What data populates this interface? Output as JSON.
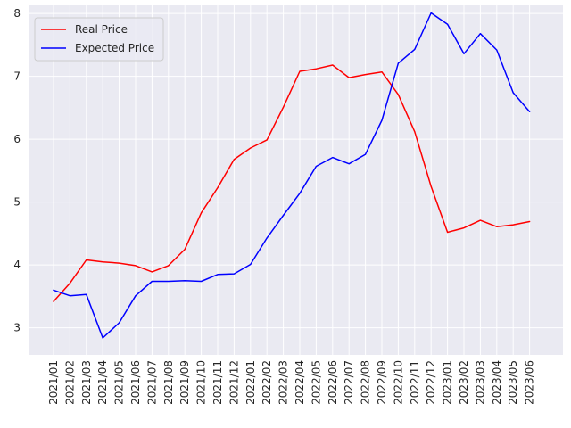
{
  "chart_data": {
    "type": "line",
    "title": "",
    "xlabel": "",
    "ylabel": "",
    "categories": [
      "2021/01",
      "2021/02",
      "2021/03",
      "2021/04",
      "2021/05",
      "2021/06",
      "2021/07",
      "2021/08",
      "2021/09",
      "2021/10",
      "2021/11",
      "2021/12",
      "2022/01",
      "2022/02",
      "2022/03",
      "2022/04",
      "2022/05",
      "2022/06",
      "2022/07",
      "2022/08",
      "2022/09",
      "2022/10",
      "2022/11",
      "2022/12",
      "2023/01",
      "2023/02",
      "2023/03",
      "2023/04",
      "2023/05",
      "2023/06"
    ],
    "ylim": [
      2.57,
      8.13
    ],
    "yticks": [
      3,
      4,
      5,
      6,
      7,
      8
    ],
    "grid": true,
    "legend_position": "top-left",
    "series": [
      {
        "name": "Real Price",
        "color": "#ff0000",
        "values": [
          3.42,
          3.71,
          4.08,
          4.05,
          4.03,
          3.99,
          3.89,
          3.99,
          4.25,
          4.83,
          5.23,
          5.68,
          5.86,
          5.99,
          6.51,
          7.08,
          7.12,
          7.18,
          6.98,
          7.03,
          7.07,
          6.71,
          6.12,
          5.25,
          4.52,
          4.59,
          4.71,
          4.61,
          4.64,
          4.69
        ]
      },
      {
        "name": "Expected Price",
        "color": "#0000ff",
        "values": [
          3.6,
          3.51,
          3.53,
          2.84,
          3.08,
          3.51,
          3.74,
          3.74,
          3.75,
          3.74,
          3.85,
          3.86,
          4.01,
          4.43,
          4.79,
          5.14,
          5.57,
          5.71,
          5.61,
          5.76,
          6.3,
          7.21,
          7.43,
          8.01,
          7.83,
          7.36,
          7.68,
          7.42,
          6.74,
          6.44
        ]
      }
    ]
  }
}
